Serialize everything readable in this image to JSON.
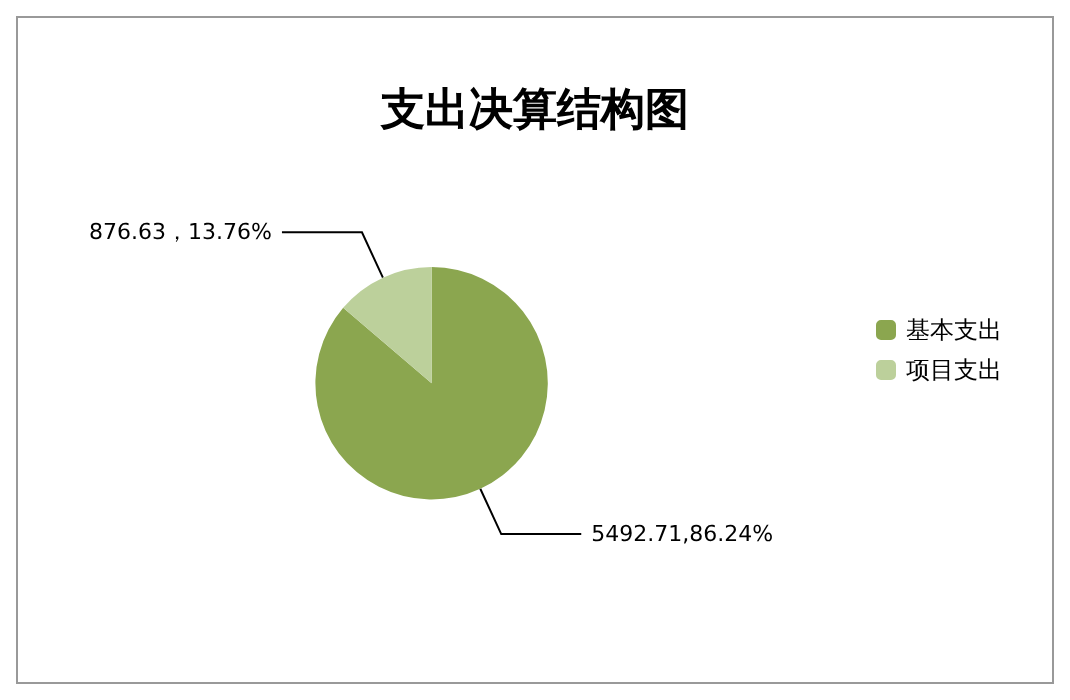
{
  "chart_data": {
    "type": "pie",
    "title": "支出决算结构图",
    "categories": [
      "基本支出",
      "项目支出"
    ],
    "values": [
      5492.71,
      876.63
    ],
    "colors": [
      "#8ba64f",
      "#bcd09b"
    ],
    "value_labels": [
      "5492.71,86.24%",
      "876.63，13.76%"
    ],
    "legend": "right"
  }
}
